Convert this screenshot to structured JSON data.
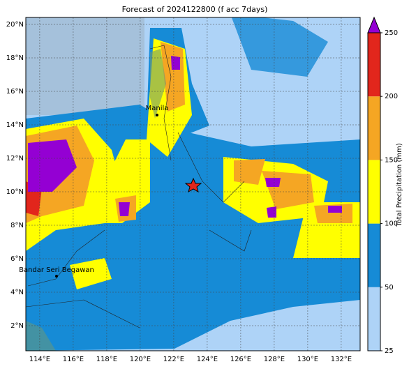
{
  "title": "Forecast of 2024122800 (f acc 7days)",
  "lon_ticks": [
    {
      "value": 114,
      "label": "114°E"
    },
    {
      "value": 116,
      "label": "116°E"
    },
    {
      "value": 118,
      "label": "118°E"
    },
    {
      "value": 120,
      "label": "120°E"
    },
    {
      "value": 122,
      "label": "122°E"
    },
    {
      "value": 124,
      "label": "124°E"
    },
    {
      "value": 126,
      "label": "126°E"
    },
    {
      "value": 128,
      "label": "128°E"
    },
    {
      "value": 130,
      "label": "130°E"
    },
    {
      "value": 132,
      "label": "132°E"
    }
  ],
  "lat_ticks": [
    {
      "value": 2,
      "label": "2°N"
    },
    {
      "value": 4,
      "label": "4°N"
    },
    {
      "value": 6,
      "label": "6°N"
    },
    {
      "value": 8,
      "label": "8°N"
    },
    {
      "value": 10,
      "label": "10°N"
    },
    {
      "value": 12,
      "label": "12°N"
    },
    {
      "value": 14,
      "label": "14°N"
    },
    {
      "value": 16,
      "label": "16°N"
    },
    {
      "value": 18,
      "label": "18°N"
    },
    {
      "value": 20,
      "label": "20°N"
    }
  ],
  "cities": [
    "Manila",
    "Bandar Seri Begawan"
  ],
  "colorbar": {
    "label": "Total Precipitation (mm)",
    "levels": [
      25,
      50,
      100,
      150,
      200,
      250
    ],
    "colors": [
      "#aed3f7",
      "#168bd6",
      "#ffff00",
      "#f5a623",
      "#e2261c",
      "#9400d3"
    ]
  }
}
